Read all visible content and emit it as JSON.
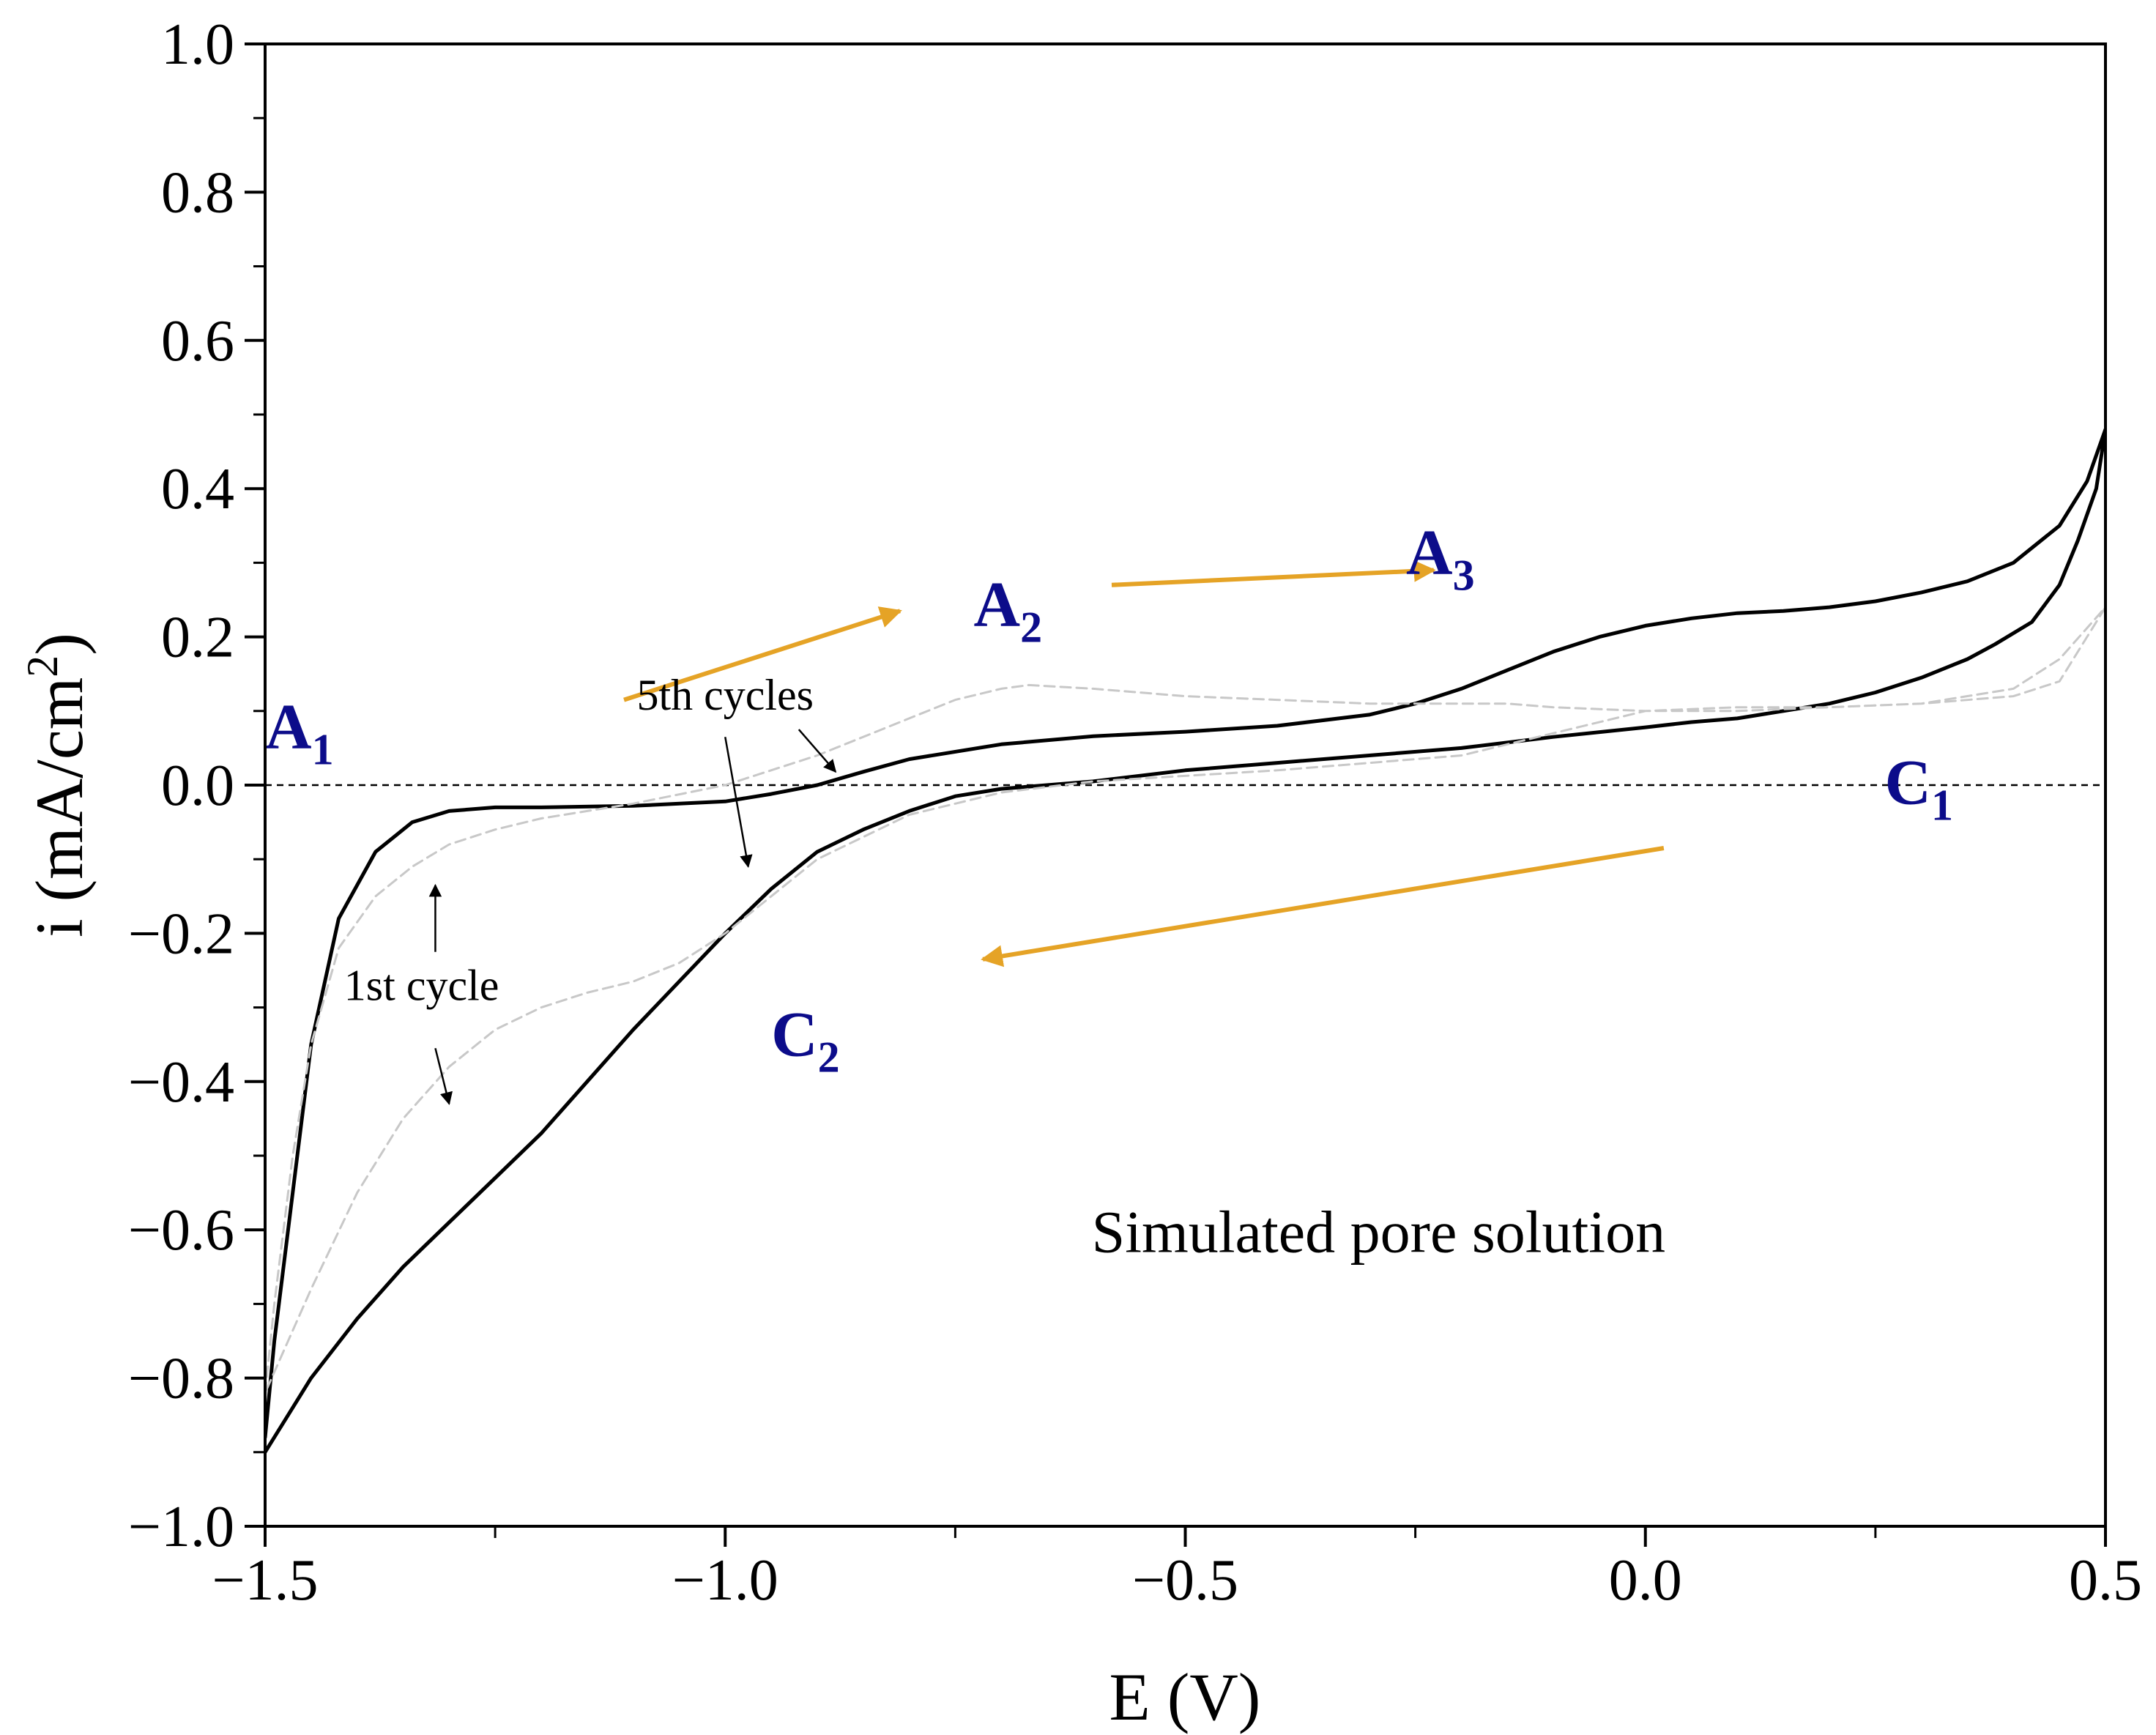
{
  "chart_data": {
    "type": "line",
    "title": "",
    "xlabel": "E (V)",
    "ylabel_main": "i (mA/cm",
    "ylabel_sup": "2",
    "ylabel_end": ")",
    "xlim": [
      -1.5,
      0.5
    ],
    "ylim": [
      -1.0,
      1.0
    ],
    "x_ticks": [
      -1.5,
      -1.0,
      -0.5,
      0.0,
      0.5
    ],
    "x_tick_labels": [
      "−1.5",
      "−1.0",
      "−0.5",
      "0.0",
      "0.5"
    ],
    "y_ticks": [
      1.0,
      0.8,
      0.6,
      0.4,
      0.2,
      0.0,
      -0.2,
      -0.4,
      -0.6,
      -0.8,
      -1.0
    ],
    "y_tick_labels": [
      "1.0",
      "0.8",
      "0.6",
      "0.4",
      "0.2",
      "0.0",
      "−0.2",
      "−0.4",
      "−0.6",
      "−0.8",
      "−1.0"
    ],
    "series": [
      {
        "name": "5th cycles",
        "style": "solid",
        "color": "#000000",
        "x": [
          -1.5,
          -1.49,
          -1.47,
          -1.45,
          -1.42,
          -1.38,
          -1.34,
          -1.3,
          -1.25,
          -1.2,
          -1.1,
          -1.0,
          -0.95,
          -0.9,
          -0.85,
          -0.8,
          -0.7,
          -0.6,
          -0.5,
          -0.4,
          -0.3,
          -0.25,
          -0.2,
          -0.15,
          -0.1,
          -0.05,
          0.0,
          0.05,
          0.1,
          0.15,
          0.2,
          0.25,
          0.3,
          0.35,
          0.4,
          0.45,
          0.48,
          0.5,
          0.49,
          0.47,
          0.45,
          0.42,
          0.38,
          0.35,
          0.3,
          0.25,
          0.2,
          0.15,
          0.1,
          0.05,
          0.0,
          -0.1,
          -0.2,
          -0.3,
          -0.4,
          -0.5,
          -0.6,
          -0.7,
          -0.75,
          -0.8,
          -0.85,
          -0.9,
          -0.95,
          -1.0,
          -1.05,
          -1.1,
          -1.15,
          -1.2,
          -1.25,
          -1.3,
          -1.35,
          -1.4,
          -1.45,
          -1.5
        ],
        "y": [
          -0.88,
          -0.75,
          -0.55,
          -0.35,
          -0.18,
          -0.09,
          -0.05,
          -0.035,
          -0.03,
          -0.03,
          -0.028,
          -0.022,
          -0.012,
          0.0,
          0.018,
          0.035,
          0.055,
          0.066,
          0.072,
          0.08,
          0.095,
          0.11,
          0.13,
          0.155,
          0.18,
          0.2,
          0.215,
          0.225,
          0.232,
          0.235,
          0.24,
          0.248,
          0.26,
          0.275,
          0.3,
          0.35,
          0.41,
          0.48,
          0.4,
          0.33,
          0.27,
          0.22,
          0.19,
          0.17,
          0.145,
          0.125,
          0.11,
          0.1,
          0.09,
          0.085,
          0.078,
          0.065,
          0.05,
          0.04,
          0.03,
          0.02,
          0.005,
          -0.005,
          -0.015,
          -0.035,
          -0.06,
          -0.09,
          -0.14,
          -0.2,
          -0.265,
          -0.33,
          -0.4,
          -0.47,
          -0.53,
          -0.59,
          -0.65,
          -0.72,
          -0.8,
          -0.9
        ]
      },
      {
        "name": "1st cycle",
        "style": "dashed",
        "color": "#c8c8c8",
        "x": [
          -1.5,
          -1.49,
          -1.47,
          -1.45,
          -1.42,
          -1.38,
          -1.34,
          -1.3,
          -1.25,
          -1.2,
          -1.15,
          -1.1,
          -1.0,
          -0.9,
          -0.8,
          -0.75,
          -0.7,
          -0.67,
          -0.6,
          -0.5,
          -0.4,
          -0.3,
          -0.2,
          -0.15,
          -0.1,
          0.0,
          0.1,
          0.2,
          0.3,
          0.4,
          0.45,
          0.5,
          0.45,
          0.4,
          0.3,
          0.2,
          0.1,
          0.0,
          -0.2,
          -0.4,
          -0.6,
          -0.7,
          -0.8,
          -0.9,
          -0.95,
          -1.0,
          -1.05,
          -1.1,
          -1.15,
          -1.2,
          -1.25,
          -1.3,
          -1.35,
          -1.4,
          -1.45,
          -1.5
        ],
        "y": [
          -0.82,
          -0.7,
          -0.5,
          -0.35,
          -0.22,
          -0.15,
          -0.11,
          -0.08,
          -0.06,
          -0.045,
          -0.035,
          -0.025,
          0.0,
          0.04,
          0.09,
          0.115,
          0.13,
          0.135,
          0.13,
          0.12,
          0.115,
          0.11,
          0.11,
          0.11,
          0.105,
          0.1,
          0.1,
          0.105,
          0.11,
          0.13,
          0.17,
          0.24,
          0.14,
          0.12,
          0.11,
          0.105,
          0.105,
          0.1,
          0.04,
          0.02,
          0.005,
          -0.01,
          -0.04,
          -0.1,
          -0.15,
          -0.2,
          -0.24,
          -0.265,
          -0.28,
          -0.3,
          -0.33,
          -0.38,
          -0.45,
          -0.55,
          -0.68,
          -0.82
        ]
      }
    ],
    "reference_line": {
      "y": 0.0,
      "style": "dashed",
      "color": "#000000"
    },
    "peak_labels": [
      {
        "main": "A",
        "sub": "1",
        "x": -1.5,
        "y": 0.05,
        "color": "#0c0c8a"
      },
      {
        "main": "A",
        "sub": "2",
        "x": -0.73,
        "y": 0.215,
        "color": "#0c0c8a"
      },
      {
        "main": "A",
        "sub": "3",
        "x": -0.26,
        "y": 0.285,
        "color": "#0c0c8a"
      },
      {
        "main": "C",
        "sub": "1",
        "x": 0.26,
        "y": -0.025,
        "color": "#0c0c8a"
      },
      {
        "main": "C",
        "sub": "2",
        "x": -0.95,
        "y": -0.365,
        "color": "#0c0c8a"
      }
    ],
    "text_annotations": [
      {
        "text": "5th cycles",
        "x": -1.0,
        "y": 0.102
      },
      {
        "text": "1st cycle",
        "x": -1.33,
        "y": -0.29
      },
      {
        "text": "Simulated pore solution",
        "x": -0.29,
        "y": -0.63
      }
    ],
    "black_arrows": [
      {
        "from": [
          -0.92,
          0.075
        ],
        "to": [
          -0.88,
          0.018
        ]
      },
      {
        "from": [
          -1.0,
          0.065
        ],
        "to": [
          -0.975,
          -0.11
        ]
      },
      {
        "from": [
          -1.315,
          -0.225
        ],
        "to": [
          -1.315,
          -0.135
        ]
      },
      {
        "from": [
          -1.315,
          -0.355
        ],
        "to": [
          -1.3,
          -0.43
        ]
      }
    ],
    "scan_arrows": {
      "color": "#e5a326",
      "items": [
        {
          "from": [
            -1.11,
            0.115
          ],
          "to": [
            -0.81,
            0.235
          ]
        },
        {
          "from": [
            -0.58,
            0.27
          ],
          "to": [
            -0.23,
            0.29
          ]
        },
        {
          "from": [
            0.02,
            -0.085
          ],
          "to": [
            -0.72,
            -0.235
          ]
        }
      ]
    }
  }
}
